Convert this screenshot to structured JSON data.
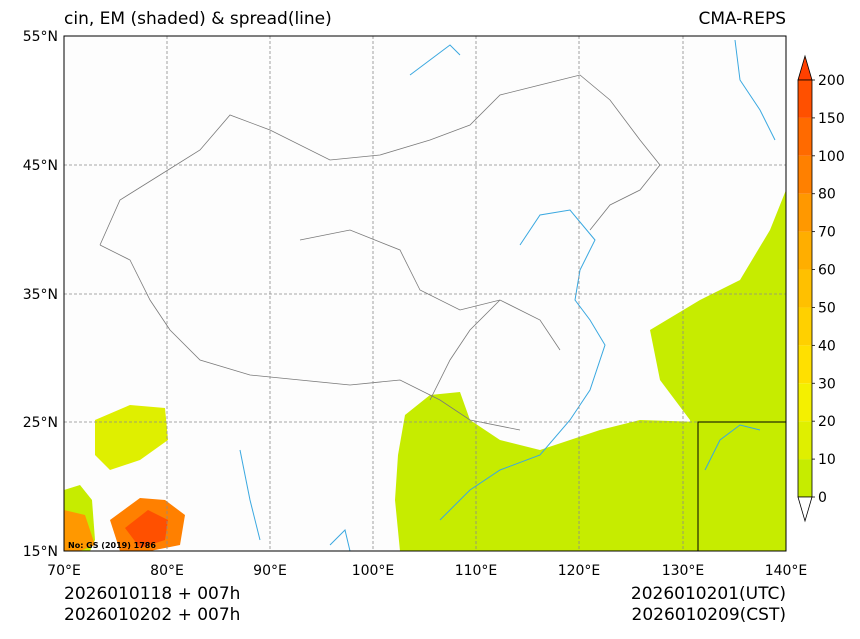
{
  "title_left": "cin, EM (shaded) & spread(line)",
  "title_right": "CMA-REPS",
  "footer": {
    "init_line": "2026010118  +  007h",
    "local_line": "2026010202  +  007h",
    "utc_valid": "2026010201(UTC)",
    "cst_valid": "2026010209(CST)"
  },
  "map_note": "No: GS (2019) 1786",
  "axes": {
    "lon_ticks": [
      "70°E",
      "80°E",
      "90°E",
      "100°E",
      "110°E",
      "120°E",
      "130°E",
      "140°E"
    ],
    "lat_ticks": [
      "55°N",
      "45°N",
      "35°N",
      "25°N",
      "15°N"
    ],
    "lon_range": [
      70,
      140
    ],
    "lat_range": [
      15,
      55
    ]
  },
  "colorbar": {
    "levels": [
      "0",
      "10",
      "20",
      "30",
      "40",
      "50",
      "60",
      "70",
      "80",
      "100",
      "150",
      "200"
    ],
    "colors": [
      "#c6ec00",
      "#dfef00",
      "#f4f000",
      "#ffe000",
      "#ffd000",
      "#ffc000",
      "#ffae00",
      "#ff9800",
      "#ff8000",
      "#ff6a00",
      "#ff5000"
    ],
    "over_color": "#ff4000",
    "under_color": "#ffffff"
  },
  "colors": {
    "land_shade": "#c6ec00",
    "coast": "#3aa8e0",
    "border": "#7a7a7a",
    "grid": "#8a8a8a"
  }
}
